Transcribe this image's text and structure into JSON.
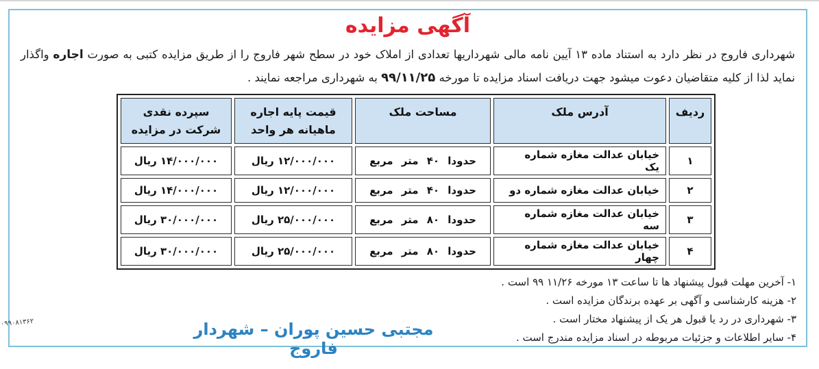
{
  "title": "آگهی مزایده",
  "intro": {
    "part1": "شهرداری فاروج در نظر دارد به استناد ماده ۱۳ آیین نامه مالی شهرداریها تعدادی از املاک خود در سطح شهر فاروج را از طریق مزایده کتبی به صورت",
    "lease": "اجاره",
    "part2": "واگذار نماید لذا از کلیه متقاضیان دعوت میشود جهت دریافت اسناد مزایده تا مورخه",
    "date": "۹۹/۱۱/۲۵",
    "part3": "به شهرداری مراجعه نمایند ."
  },
  "table": {
    "headers": {
      "row_no": "ردیف",
      "address": "آدرس ملک",
      "area": "مساحت ملک",
      "price": "قیمت پایه اجاره ماهیانه هر واحد",
      "deposit": "سپرده نقدی شرکت در مزایده"
    },
    "rows": [
      {
        "no": "۱",
        "address": "خیابان عدالت مغازه شماره یک",
        "area": "حدودا ۴۰ متر مربع",
        "price": "۱۲/۰۰۰/۰۰۰ ریال",
        "deposit": "۱۴/۰۰۰/۰۰۰ ریال"
      },
      {
        "no": "۲",
        "address": "خیابان عدالت مغازه شماره دو",
        "area": "حدودا ۴۰ متر مربع",
        "price": "۱۲/۰۰۰/۰۰۰ ریال",
        "deposit": "۱۴/۰۰۰/۰۰۰ ریال"
      },
      {
        "no": "۳",
        "address": "خیابان عدالت مغازه شماره سه",
        "area": "حدودا ۸۰ متر مربع",
        "price": "۲۵/۰۰۰/۰۰۰ ریال",
        "deposit": "۳۰/۰۰۰/۰۰۰ ریال"
      },
      {
        "no": "۴",
        "address": "خیابان عدالت مغازه شماره چهار",
        "area": "حدودا ۸۰ متر مربع",
        "price": "۲۵/۰۰۰/۰۰۰ ریال",
        "deposit": "۳۰/۰۰۰/۰۰۰ ریال"
      }
    ]
  },
  "notes": [
    "۱- آخرین مهلت قبول پیشنهاد ها تا ساعت ۱۳ مورخه ۱۱/۲۶  ۹۹ است .",
    "۲- هزینه کارشناسی و آگهی بر عهده برندگان مزایده است .",
    "۳- شهرداری در رد یا قبول هر یک از پیشنهاد مختار است .",
    "۴- سایر اطلاعات و جزئیات مربوطه در اسناد مزایده مندرج است ."
  ],
  "signature": "مجتبی حسین پوران – شهردار فاروج",
  "tracking_code": "۰۹۹۰۸۱۳۶۲",
  "colors": {
    "box_border": "#7bc1d9",
    "title_red": "#e2242f",
    "header_blue": "#cde1f2",
    "signature_blue": "#2b83c2",
    "table_border": "#222222"
  }
}
